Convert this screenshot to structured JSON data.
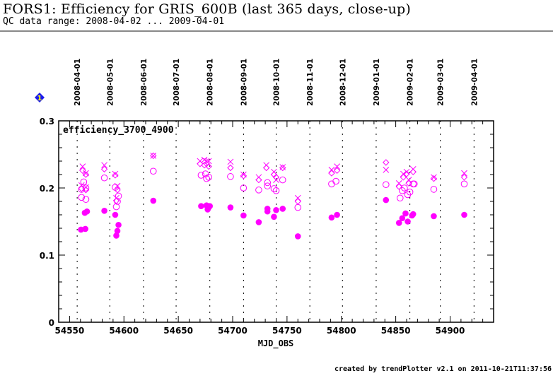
{
  "header": {
    "title": "FORS1: Efficiency for GRIS_600B (last 365 days, close-up)",
    "subtitle": "QC data range: 2008-04-02 ... 2009-04-01"
  },
  "footer": {
    "text": "created by trendPlotter v2.1 on 2011-10-21T11:37:56"
  },
  "badge": {
    "label": "1",
    "color": "#1a1aee",
    "text_color": "#ffff00"
  },
  "chart_data": {
    "type": "scatter",
    "title": "FORS1: Efficiency for GRIS_600B (last 365 days, close-up)",
    "panel_label": "efficiency_3700_4900",
    "xlabel": "MJD_OBS",
    "ylabel": "",
    "xlim": [
      54540,
      54940
    ],
    "ylim": [
      0,
      0.3
    ],
    "x_ticks": [
      54550,
      54600,
      54650,
      54700,
      54750,
      54800,
      54850,
      54900
    ],
    "x_tick_labels": [
      "54550",
      "54600",
      "54650",
      "54700",
      "54750",
      "54800",
      "54850",
      "54900"
    ],
    "y_ticks": [
      0,
      0.1,
      0.2,
      0.3
    ],
    "y_tick_labels": [
      "0",
      "0.1",
      "0.2",
      "0.3"
    ],
    "grid": "vertical dotted lines at month starts",
    "month_markers": [
      {
        "label": "2008-04-01",
        "mjd": 54557
      },
      {
        "label": "2008-05-01",
        "mjd": 54587
      },
      {
        "label": "2008-06-01",
        "mjd": 54618
      },
      {
        "label": "2008-07-01",
        "mjd": 54648
      },
      {
        "label": "2008-08-01",
        "mjd": 54679
      },
      {
        "label": "2008-09-01",
        "mjd": 54710
      },
      {
        "label": "2008-10-01",
        "mjd": 54740
      },
      {
        "label": "2008-11-01",
        "mjd": 54771
      },
      {
        "label": "2008-12-01",
        "mjd": 54801
      },
      {
        "label": "2009-01-01",
        "mjd": 54832
      },
      {
        "label": "2009-02-01",
        "mjd": 54863
      },
      {
        "label": "2009-03-01",
        "mjd": 54891
      },
      {
        "label": "2009-04-01",
        "mjd": 54922
      }
    ],
    "color": "#ff00ff",
    "series": [
      {
        "name": "filled-circle",
        "marker": "filled-circle",
        "points": [
          [
            54560.5,
            0.138
          ],
          [
            54564.5,
            0.139
          ],
          [
            54564,
            0.163
          ],
          [
            54566,
            0.165
          ],
          [
            54582,
            0.166
          ],
          [
            54592,
            0.16
          ],
          [
            54593,
            0.129
          ],
          [
            54594,
            0.136
          ],
          [
            54595,
            0.145
          ],
          [
            54627,
            0.181
          ],
          [
            54671,
            0.173
          ],
          [
            54676,
            0.174
          ],
          [
            54677,
            0.168
          ],
          [
            54678,
            0.171
          ],
          [
            54679,
            0.173
          ],
          [
            54698,
            0.171
          ],
          [
            54710,
            0.159
          ],
          [
            54724,
            0.149
          ],
          [
            54732,
            0.165
          ],
          [
            54732,
            0.169
          ],
          [
            54738,
            0.157
          ],
          [
            54740,
            0.167
          ],
          [
            54746,
            0.169
          ],
          [
            54760,
            0.128
          ],
          [
            54791,
            0.156
          ],
          [
            54796,
            0.16
          ],
          [
            54841,
            0.182
          ],
          [
            54853,
            0.148
          ],
          [
            54856,
            0.155
          ],
          [
            54859,
            0.162
          ],
          [
            54861,
            0.15
          ],
          [
            54865,
            0.159
          ],
          [
            54866,
            0.161
          ],
          [
            54885,
            0.158
          ],
          [
            54913,
            0.16
          ]
        ]
      },
      {
        "name": "open-circle",
        "marker": "open-circle",
        "points": [
          [
            54561,
            0.186
          ],
          [
            54565,
            0.183
          ],
          [
            54563,
            0.209
          ],
          [
            54561,
            0.198
          ],
          [
            54565,
            0.2
          ],
          [
            54582,
            0.215
          ],
          [
            54592,
            0.201
          ],
          [
            54593,
            0.172
          ],
          [
            54594,
            0.18
          ],
          [
            54595,
            0.188
          ],
          [
            54627,
            0.225
          ],
          [
            54671,
            0.219
          ],
          [
            54675,
            0.221
          ],
          [
            54676,
            0.214
          ],
          [
            54678,
            0.216
          ],
          [
            54698,
            0.217
          ],
          [
            54710,
            0.2
          ],
          [
            54724,
            0.197
          ],
          [
            54732,
            0.208
          ],
          [
            54732,
            0.203
          ],
          [
            54738,
            0.199
          ],
          [
            54740,
            0.196
          ],
          [
            54746,
            0.212
          ],
          [
            54760,
            0.171
          ],
          [
            54791,
            0.206
          ],
          [
            54795,
            0.21
          ],
          [
            54841,
            0.205
          ],
          [
            54854,
            0.185
          ],
          [
            54856,
            0.196
          ],
          [
            54858,
            0.2
          ],
          [
            54861,
            0.19
          ],
          [
            54863,
            0.194
          ],
          [
            54866,
            0.206
          ],
          [
            54867,
            0.206
          ],
          [
            54885,
            0.198
          ],
          [
            54913,
            0.206
          ]
        ]
      },
      {
        "name": "cross",
        "marker": "x",
        "points": [
          [
            54562,
            0.232
          ],
          [
            54565,
            0.222
          ],
          [
            54561,
            0.204
          ],
          [
            54565,
            0.201
          ],
          [
            54582,
            0.234
          ],
          [
            54592,
            0.221
          ],
          [
            54594,
            0.203
          ],
          [
            54593,
            0.185
          ],
          [
            54627,
            0.248
          ],
          [
            54670,
            0.24
          ],
          [
            54674,
            0.242
          ],
          [
            54676,
            0.24
          ],
          [
            54678,
            0.24
          ],
          [
            54698,
            0.239
          ],
          [
            54710,
            0.22
          ],
          [
            54724,
            0.216
          ],
          [
            54731,
            0.234
          ],
          [
            54738,
            0.224
          ],
          [
            54740,
            0.212
          ],
          [
            54746,
            0.231
          ],
          [
            54760,
            0.185
          ],
          [
            54791,
            0.227
          ],
          [
            54796,
            0.232
          ],
          [
            54841,
            0.227
          ],
          [
            54853,
            0.207
          ],
          [
            54857,
            0.221
          ],
          [
            54860,
            0.224
          ],
          [
            54862,
            0.212
          ],
          [
            54866,
            0.228
          ],
          [
            54885,
            0.216
          ],
          [
            54913,
            0.222
          ]
        ]
      },
      {
        "name": "diamond",
        "marker": "diamond",
        "points": [
          [
            54562,
            0.226
          ],
          [
            54565,
            0.22
          ],
          [
            54561,
            0.199
          ],
          [
            54565,
            0.197
          ],
          [
            54582,
            0.228
          ],
          [
            54592,
            0.219
          ],
          [
            54594,
            0.197
          ],
          [
            54593,
            0.181
          ],
          [
            54627,
            0.248
          ],
          [
            54670,
            0.236
          ],
          [
            54674,
            0.234
          ],
          [
            54676,
            0.236
          ],
          [
            54678,
            0.232
          ],
          [
            54698,
            0.23
          ],
          [
            54710,
            0.218
          ],
          [
            54724,
            0.212
          ],
          [
            54731,
            0.23
          ],
          [
            54738,
            0.22
          ],
          [
            54740,
            0.216
          ],
          [
            54746,
            0.23
          ],
          [
            54760,
            0.18
          ],
          [
            54791,
            0.222
          ],
          [
            54796,
            0.226
          ],
          [
            54841,
            0.238
          ],
          [
            54853,
            0.202
          ],
          [
            54857,
            0.216
          ],
          [
            54860,
            0.221
          ],
          [
            54862,
            0.207
          ],
          [
            54866,
            0.224
          ],
          [
            54885,
            0.214
          ],
          [
            54913,
            0.216
          ]
        ]
      }
    ]
  }
}
